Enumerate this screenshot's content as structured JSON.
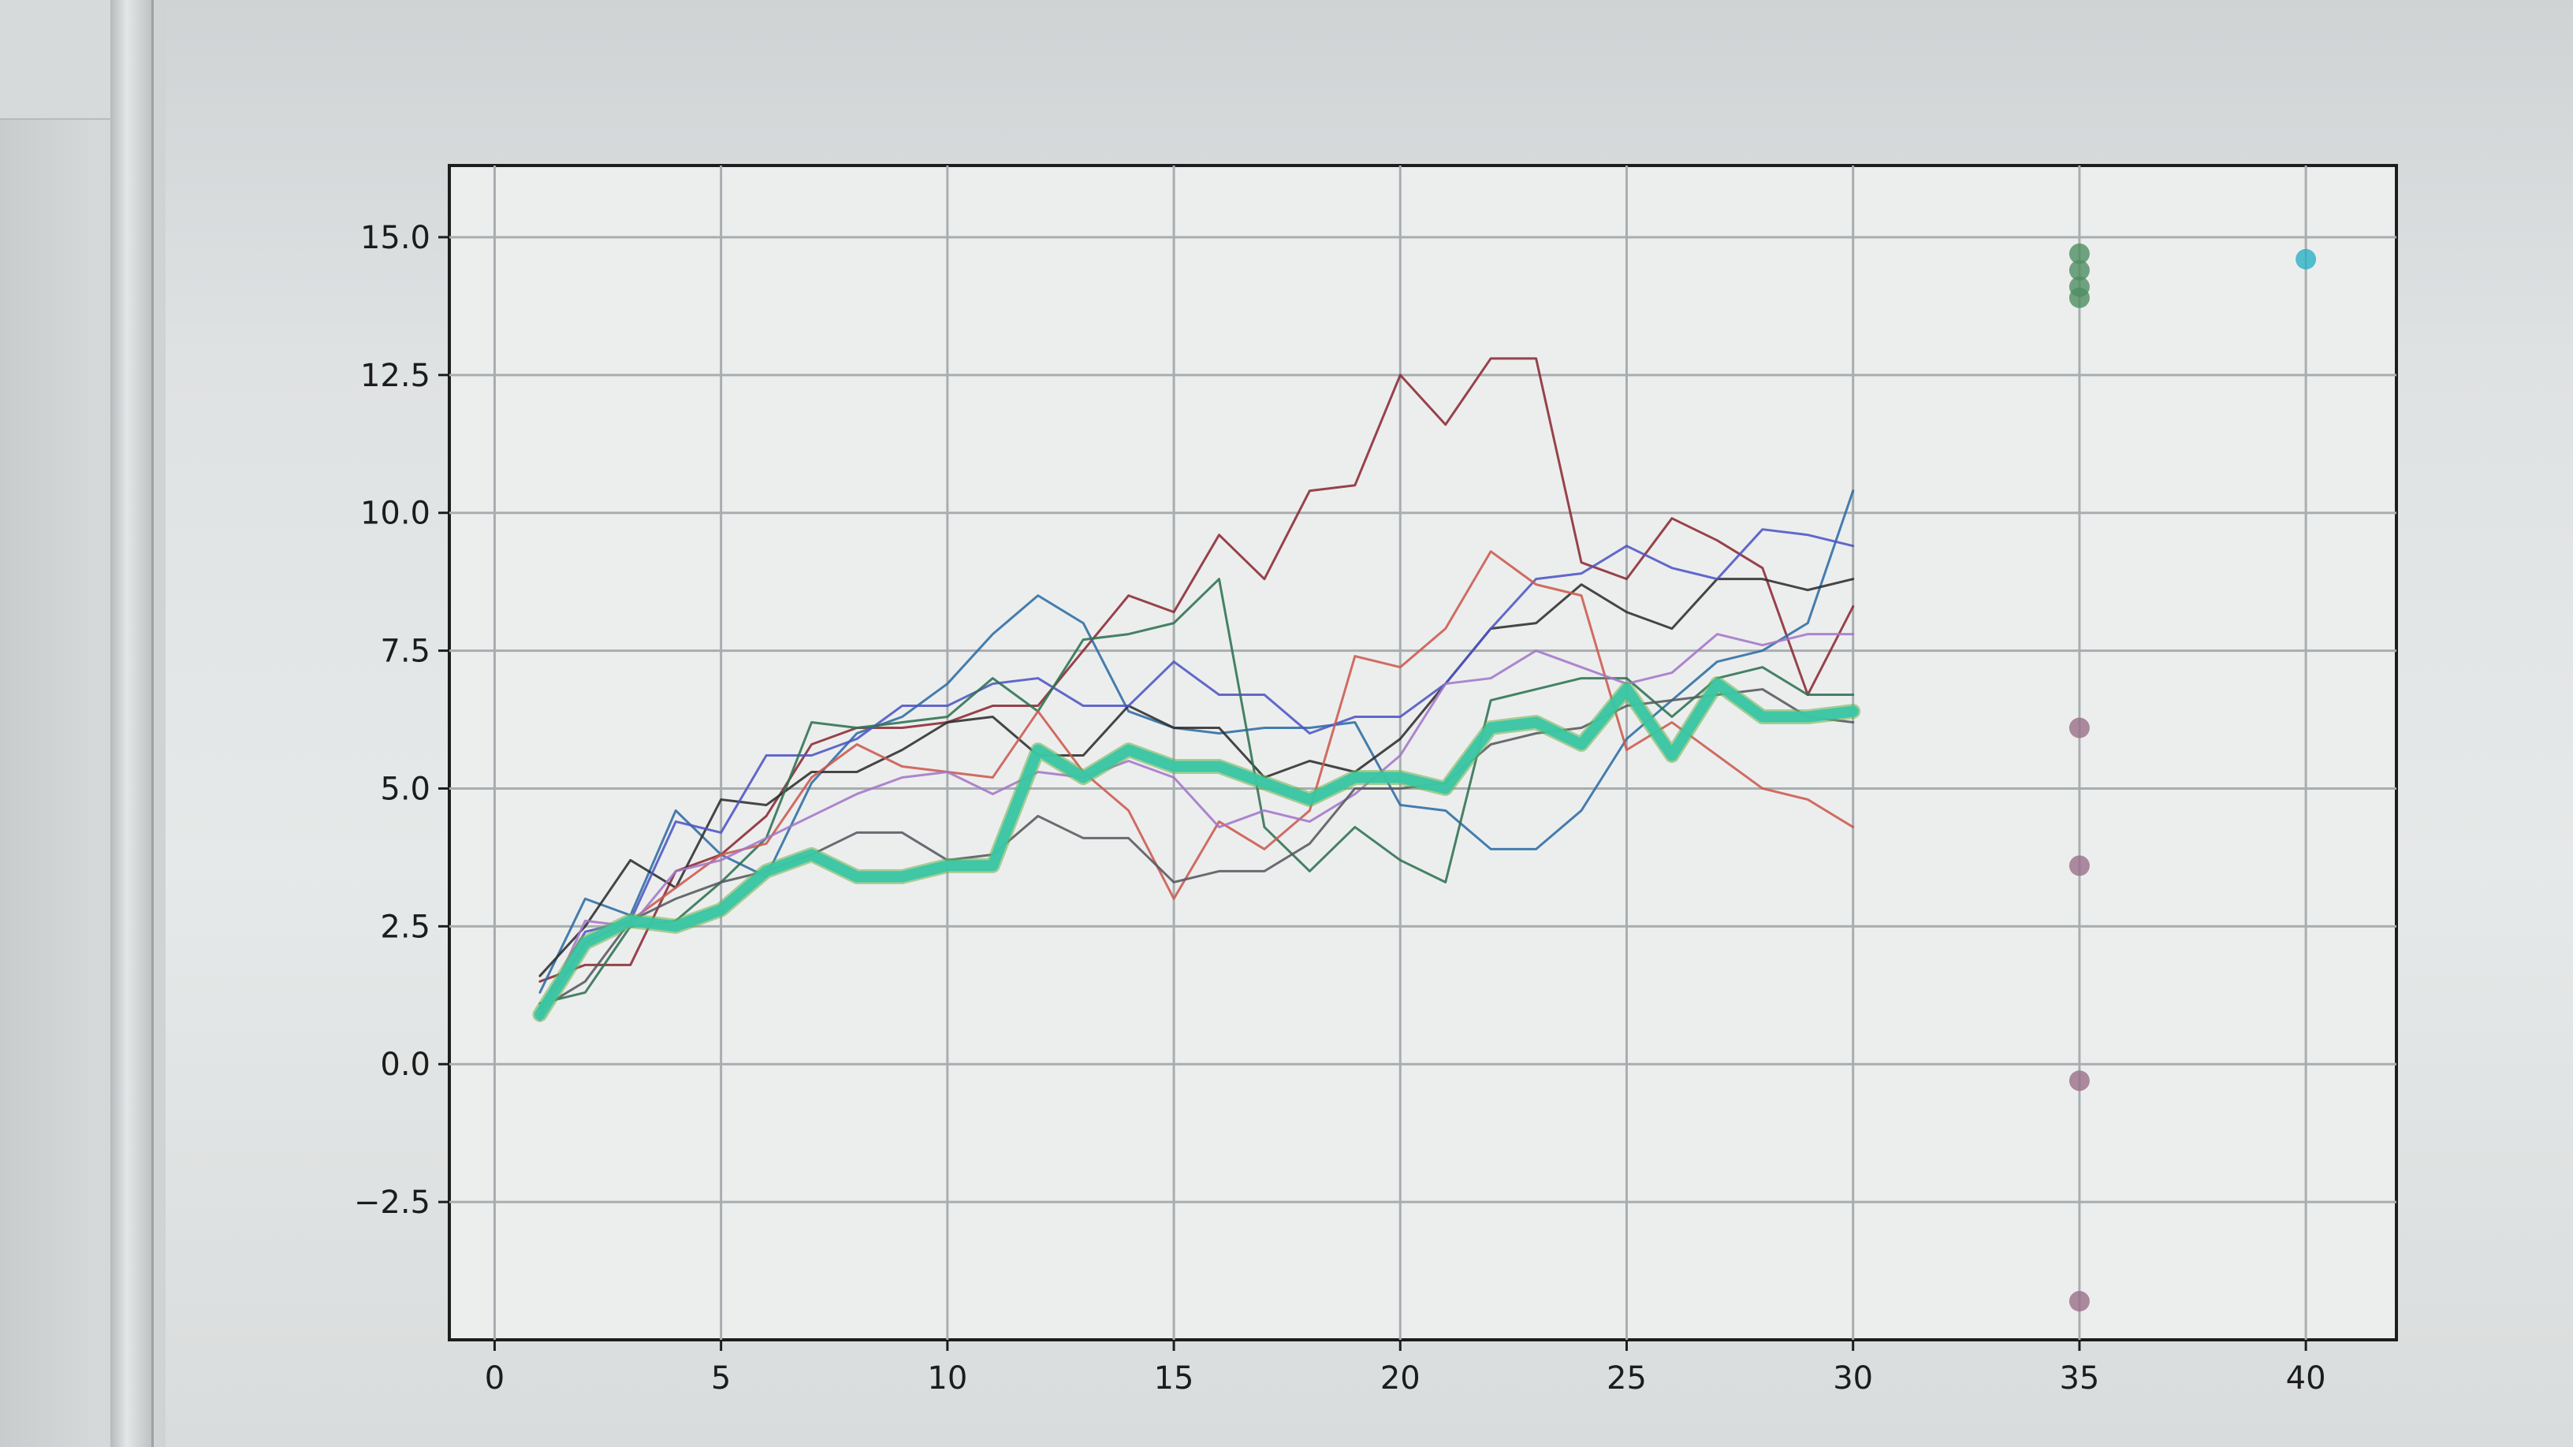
{
  "chart_data": {
    "type": "line",
    "title": "",
    "xlabel": "",
    "ylabel": "",
    "xlim": [
      -1,
      42
    ],
    "ylim": [
      -5,
      16.3
    ],
    "grid": true,
    "x_ticks": [
      "0",
      "5",
      "10",
      "15",
      "20",
      "25",
      "30",
      "35",
      "40"
    ],
    "x_tick_values": [
      0,
      5,
      10,
      15,
      20,
      25,
      30,
      35,
      40
    ],
    "y_ticks": [
      "15.0",
      "12.5",
      "10.0",
      "7.5",
      "5.0",
      "2.5",
      "0.0",
      "−2.5"
    ],
    "y_tick_values": [
      15,
      12.5,
      10,
      7.5,
      5,
      2.5,
      0,
      -2.5
    ],
    "x": [
      1,
      2,
      3,
      4,
      5,
      6,
      7,
      8,
      9,
      10,
      11,
      12,
      13,
      14,
      15,
      16,
      17,
      18,
      19,
      20,
      21,
      22,
      23,
      24,
      25,
      26,
      27,
      28,
      29,
      30
    ],
    "series": [
      {
        "color": "#8b2a33",
        "width": 3,
        "values": [
          1.5,
          1.8,
          1.8,
          3.5,
          3.8,
          4.5,
          5.8,
          6.1,
          6.1,
          6.2,
          6.5,
          6.5,
          7.5,
          8.5,
          8.2,
          9.6,
          8.8,
          10.4,
          10.5,
          12.5,
          11.6,
          12.8,
          12.8,
          9.1,
          8.8,
          9.9,
          9.5,
          9.0,
          6.7,
          8.3
        ]
      },
      {
        "color": "#2e6da4",
        "width": 3,
        "values": [
          1.3,
          3.0,
          2.7,
          4.6,
          3.8,
          3.4,
          5.1,
          6.0,
          6.3,
          6.9,
          7.8,
          8.5,
          8.0,
          6.4,
          6.1,
          6.0,
          6.1,
          6.1,
          6.2,
          4.7,
          4.6,
          3.9,
          3.9,
          4.6,
          5.9,
          6.6,
          7.3,
          7.5,
          8.0,
          10.4
        ]
      },
      {
        "color": "#2e2e2e",
        "width": 3,
        "values": [
          1.6,
          2.5,
          3.7,
          3.2,
          4.8,
          4.7,
          5.3,
          5.3,
          5.7,
          6.2,
          6.3,
          5.6,
          5.6,
          6.5,
          6.1,
          6.1,
          5.2,
          5.5,
          5.3,
          5.9,
          6.9,
          7.9,
          8.0,
          8.7,
          8.2,
          7.9,
          8.8,
          8.8,
          8.6,
          8.8
        ]
      },
      {
        "color": "#4d55c4",
        "width": 3,
        "values": [
          1.0,
          2.4,
          2.6,
          4.4,
          4.2,
          5.6,
          5.6,
          5.9,
          6.5,
          6.5,
          6.9,
          7.0,
          6.5,
          6.5,
          7.3,
          6.7,
          6.7,
          6.0,
          6.3,
          6.3,
          6.9,
          7.9,
          8.8,
          8.9,
          9.4,
          9.0,
          8.8,
          9.7,
          9.6,
          9.4
        ]
      },
      {
        "color": "#2f7252",
        "width": 3,
        "values": [
          1.1,
          1.3,
          2.5,
          2.6,
          3.3,
          4.1,
          6.2,
          6.1,
          6.2,
          6.3,
          7.0,
          6.4,
          7.7,
          7.8,
          8.0,
          8.8,
          4.3,
          3.5,
          4.3,
          3.7,
          3.3,
          6.6,
          6.8,
          7.0,
          7.0,
          6.3,
          7.0,
          7.2,
          6.7,
          6.7
        ]
      },
      {
        "color": "#cc5a4e",
        "width": 3,
        "values": [
          0.9,
          2.2,
          2.6,
          3.2,
          3.8,
          4.0,
          5.2,
          5.8,
          5.4,
          5.3,
          5.2,
          6.4,
          5.3,
          4.6,
          3.0,
          4.4,
          3.9,
          4.6,
          7.4,
          7.2,
          7.9,
          9.3,
          8.7,
          8.5,
          5.7,
          6.2,
          5.6,
          5.0,
          4.8,
          4.3
        ]
      },
      {
        "color": "#a476c8",
        "width": 3,
        "values": [
          0.8,
          2.6,
          2.5,
          3.5,
          3.7,
          4.1,
          4.5,
          4.9,
          5.2,
          5.3,
          4.9,
          5.3,
          5.2,
          5.5,
          5.2,
          4.3,
          4.6,
          4.4,
          4.9,
          5.6,
          6.9,
          7.0,
          7.5,
          7.2,
          6.9,
          7.1,
          7.8,
          7.6,
          7.8,
          7.8
        ]
      },
      {
        "color": "#55595d",
        "width": 3,
        "values": [
          1.0,
          1.5,
          2.6,
          3.0,
          3.3,
          3.5,
          3.8,
          4.2,
          4.2,
          3.7,
          3.8,
          4.5,
          4.1,
          4.1,
          3.3,
          3.5,
          3.5,
          4.0,
          5.0,
          5.0,
          5.1,
          5.8,
          6.0,
          6.1,
          6.5,
          6.6,
          6.7,
          6.8,
          6.3,
          6.2
        ]
      },
      {
        "color": "#39c6a6",
        "width": 14,
        "values": [
          0.9,
          2.2,
          2.6,
          2.5,
          2.8,
          3.5,
          3.8,
          3.4,
          3.4,
          3.6,
          3.6,
          5.7,
          5.2,
          5.7,
          5.4,
          5.4,
          5.1,
          4.8,
          5.2,
          5.2,
          5.0,
          6.1,
          6.2,
          5.8,
          6.8,
          5.6,
          6.9,
          6.3,
          6.3,
          6.4
        ]
      }
    ],
    "scatter": [
      {
        "color": "#4f8f62",
        "points": [
          [
            35,
            14.7
          ],
          [
            35,
            14.4
          ],
          [
            35,
            14.1
          ],
          [
            35,
            13.9
          ]
        ]
      },
      {
        "color": "#2bb0c4",
        "points": [
          [
            40,
            14.6
          ]
        ]
      },
      {
        "color": "#9a6e8a",
        "points": [
          [
            35,
            6.1
          ],
          [
            35,
            3.6
          ],
          [
            35,
            -0.3
          ],
          [
            35,
            -4.3
          ]
        ]
      }
    ]
  }
}
